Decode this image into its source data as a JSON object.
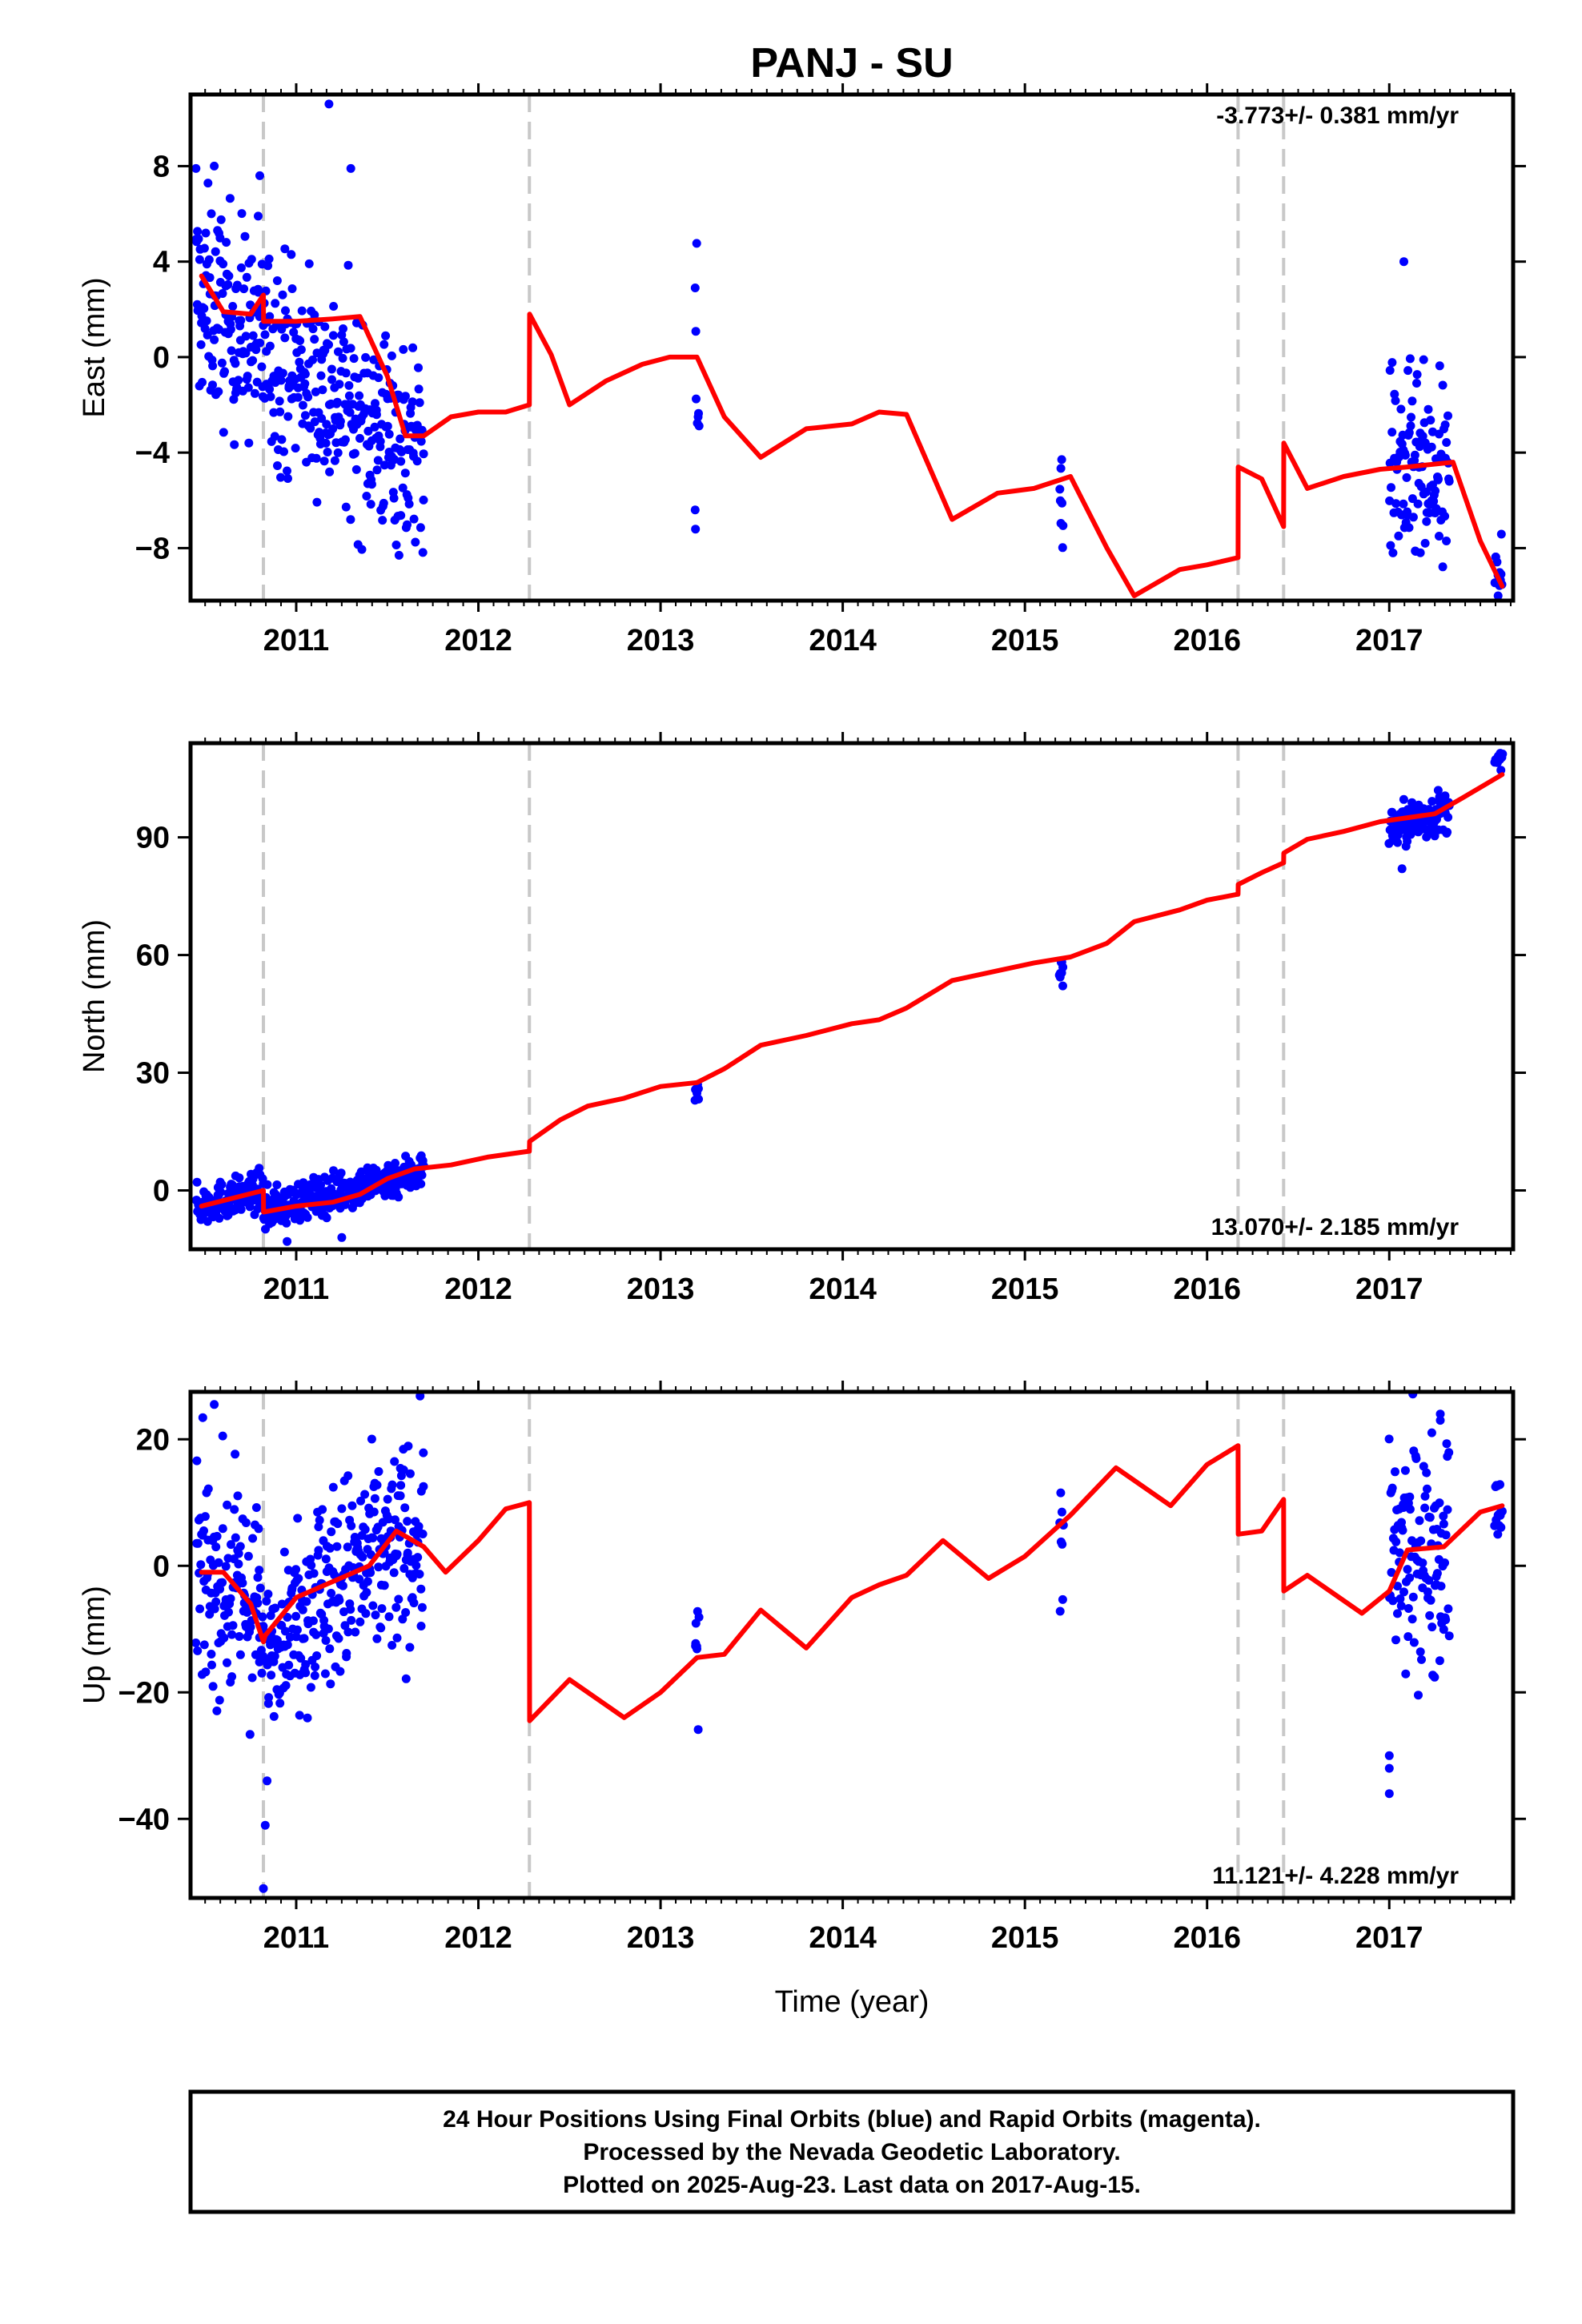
{
  "title": "PANJ - SU",
  "xlabel": "Time (year)",
  "footer": {
    "line1": "24 Hour Positions Using Final Orbits (blue) and Rapid Orbits (magenta).",
    "line2": "Processed by the Nevada Geodetic Laboratory.",
    "line3": "Plotted on 2025-Aug-23. Last data on 2017-Aug-15."
  },
  "colors": {
    "final_points": "#0000ff",
    "model": "#ff0000",
    "step_lines": "#c8c8c8"
  },
  "chart_data": [
    {
      "type": "scatter",
      "component": "east",
      "ylabel": "East (mm)",
      "rate_text": "-3.773+/- 0.381 mm/yr",
      "rate_position": "top-right",
      "xlim": [
        2010.42,
        2017.68
      ],
      "ylim": [
        -10.2,
        11
      ],
      "xticks": [
        2011,
        2012,
        2013,
        2014,
        2015,
        2016,
        2017
      ],
      "yticks": [
        -8,
        -4,
        0,
        4,
        8
      ],
      "steps": [
        2010.82,
        2012.28,
        2016.17,
        2016.42
      ],
      "series": [
        {
          "kind": "points",
          "segments": [
            {
              "x": [
                2010.45,
                2011.7
              ],
              "trend": [
                2.6,
                -4.3
              ],
              "scatter": 2.2
            },
            {
              "x": [
                2013.19,
                2013.21
              ],
              "trend": [
                -1.5,
                -1.5
              ],
              "scatter": 2.8
            },
            {
              "x": [
                2015.19,
                2015.21
              ],
              "trend": [
                -5.8,
                -5.8
              ],
              "scatter": 1.5
            },
            {
              "x": [
                2017.0,
                2017.33
              ],
              "trend": [
                -4.6,
                -5.8
              ],
              "scatter": 2.1
            },
            {
              "x": [
                2017.58,
                2017.62
              ],
              "trend": [
                -8.4,
                -8.8
              ],
              "scatter": 1.0
            }
          ],
          "outliers": [
            [
              2010.45,
              7.9
            ],
            [
              2010.55,
              8.0
            ],
            [
              2010.8,
              7.6
            ],
            [
              2011.18,
              10.6
            ],
            [
              2011.3,
              7.9
            ],
            [
              2017.08,
              4.0
            ],
            [
              2013.19,
              2.9
            ],
            [
              2013.19,
              -6.4
            ]
          ]
        },
        {
          "kind": "model",
          "x": [
            2010.48,
            2010.6,
            2010.75,
            2010.82,
            2010.821,
            2011.0,
            2011.2,
            2011.35,
            2011.5,
            2011.6,
            2011.7,
            2011.85,
            2012.0,
            2012.15,
            2012.28,
            2012.281,
            2012.4,
            2012.5,
            2012.7,
            2012.9,
            2013.05,
            2013.2,
            2013.35,
            2013.55,
            2013.8,
            2014.05,
            2014.2,
            2014.35,
            2014.6,
            2014.85,
            2015.05,
            2015.25,
            2015.45,
            2015.6,
            2015.85,
            2016.0,
            2016.17,
            2016.171,
            2016.3,
            2016.42,
            2016.421,
            2016.55,
            2016.75,
            2016.95,
            2017.1,
            2017.35,
            2017.5,
            2017.62
          ],
          "y": [
            3.4,
            1.9,
            1.8,
            2.6,
            1.5,
            1.5,
            1.6,
            1.7,
            -0.8,
            -3.3,
            -3.3,
            -2.5,
            -2.3,
            -2.3,
            -2.0,
            1.8,
            0.1,
            -2.0,
            -1.0,
            -0.3,
            0.0,
            0.0,
            -2.5,
            -4.2,
            -3.0,
            -2.8,
            -2.3,
            -2.4,
            -6.8,
            -5.7,
            -5.5,
            -5.0,
            -8.0,
            -10.0,
            -8.9,
            -8.7,
            -8.4,
            -4.6,
            -5.1,
            -7.1,
            -3.6,
            -5.5,
            -5.0,
            -4.7,
            -4.6,
            -4.4,
            -7.7,
            -9.6
          ]
        }
      ]
    },
    {
      "type": "scatter",
      "component": "north",
      "ylabel": "North (mm)",
      "rate_text": "13.070+/- 2.185 mm/yr",
      "rate_position": "bottom-right",
      "xlim": [
        2010.42,
        2017.68
      ],
      "ylim": [
        -15,
        114
      ],
      "xticks": [
        2011,
        2012,
        2013,
        2014,
        2015,
        2016,
        2017
      ],
      "yticks": [
        0,
        30,
        60,
        90
      ],
      "steps": [
        2010.82,
        2012.28,
        2016.17,
        2016.42
      ],
      "series": [
        {
          "kind": "points",
          "segments": [
            {
              "x": [
                2010.45,
                2010.82
              ],
              "trend": [
                -4.0,
                0.0
              ],
              "scatter": 2.4
            },
            {
              "x": [
                2010.82,
                2011.7
              ],
              "trend": [
                -5.0,
                5.0
              ],
              "scatter": 2.5
            },
            {
              "x": [
                2013.19,
                2013.21
              ],
              "trend": [
                25.5,
                25.5
              ],
              "scatter": 1.6
            },
            {
              "x": [
                2015.19,
                2015.21
              ],
              "trend": [
                55.5,
                55.5
              ],
              "scatter": 1.6
            },
            {
              "x": [
                2017.0,
                2017.33
              ],
              "trend": [
                92.0,
                97.0
              ],
              "scatter": 2.8
            },
            {
              "x": [
                2017.58,
                2017.62
              ],
              "trend": [
                108.5,
                110.0
              ],
              "scatter": 1.0
            }
          ],
          "outliers": [
            [
              2010.95,
              -13.0
            ],
            [
              2011.25,
              -12.0
            ],
            [
              2017.07,
              82.0
            ]
          ]
        },
        {
          "kind": "model",
          "x": [
            2010.48,
            2010.65,
            2010.82,
            2010.821,
            2011.0,
            2011.2,
            2011.35,
            2011.5,
            2011.65,
            2011.85,
            2012.05,
            2012.28,
            2012.281,
            2012.45,
            2012.6,
            2012.8,
            2013.0,
            2013.2,
            2013.35,
            2013.55,
            2013.8,
            2014.05,
            2014.2,
            2014.35,
            2014.6,
            2014.85,
            2015.05,
            2015.25,
            2015.45,
            2015.6,
            2015.85,
            2016.0,
            2016.17,
            2016.171,
            2016.3,
            2016.42,
            2016.421,
            2016.55,
            2016.75,
            2016.95,
            2017.1,
            2017.25,
            2017.4,
            2017.62
          ],
          "y": [
            -4.0,
            -2.0,
            0.0,
            -5.5,
            -4.0,
            -3.0,
            -1.0,
            3.0,
            5.5,
            6.5,
            8.5,
            10.0,
            12.5,
            18.0,
            21.5,
            23.5,
            26.5,
            27.5,
            31.0,
            37.0,
            39.5,
            42.5,
            43.5,
            46.5,
            53.5,
            56.0,
            58.0,
            59.5,
            63.0,
            68.5,
            71.5,
            74.0,
            75.5,
            78.0,
            81.0,
            83.5,
            86.0,
            89.5,
            91.5,
            94.0,
            95.0,
            96.0,
            100.0,
            106.0
          ]
        }
      ]
    },
    {
      "type": "scatter",
      "component": "up",
      "ylabel": "Up (mm)",
      "rate_text": "11.121+/- 4.228 mm/yr",
      "rate_position": "bottom-right",
      "xlim": [
        2010.42,
        2017.68
      ],
      "ylim": [
        -52.5,
        27.5
      ],
      "xticks": [
        2011,
        2012,
        2013,
        2014,
        2015,
        2016,
        2017
      ],
      "yticks": [
        -40,
        -20,
        0,
        20
      ],
      "steps": [
        2010.82,
        2012.28,
        2016.17,
        2016.42
      ],
      "series": [
        {
          "kind": "points",
          "segments": [
            {
              "x": [
                2010.45,
                2010.8
              ],
              "trend": [
                -1.0,
                -6.0
              ],
              "scatter": 8.5
            },
            {
              "x": [
                2010.8,
                2011.0
              ],
              "trend": [
                -14.0,
                -8.0
              ],
              "scatter": 5.0
            },
            {
              "x": [
                2011.0,
                2011.7
              ],
              "trend": [
                -6.0,
                4.5
              ],
              "scatter": 8.0
            },
            {
              "x": [
                2013.19,
                2013.21
              ],
              "trend": [
                -10.5,
                -10.5
              ],
              "scatter": 8.0
            },
            {
              "x": [
                2015.19,
                2015.21
              ],
              "trend": [
                1.0,
                1.0
              ],
              "scatter": 7.5
            },
            {
              "x": [
                2017.0,
                2017.33
              ],
              "trend": [
                0.0,
                4.0
              ],
              "scatter": 9.0
            },
            {
              "x": [
                2017.58,
                2017.62
              ],
              "trend": [
                8.0,
                9.0
              ],
              "scatter": 2.8
            }
          ],
          "outliers": [
            [
              2010.82,
              -51.0
            ],
            [
              2010.83,
              -41.0
            ],
            [
              2010.84,
              -34.0
            ],
            [
              2010.55,
              25.5
            ],
            [
              2017.0,
              -36.0
            ],
            [
              2017.0,
              -32.0
            ],
            [
              2017.0,
              -30.0
            ],
            [
              2017.28,
              24.0
            ],
            [
              2017.28,
              23.0
            ]
          ]
        },
        {
          "kind": "model",
          "x": [
            2010.48,
            2010.6,
            2010.75,
            2010.82,
            2010.83,
            2011.0,
            2011.2,
            2011.4,
            2011.55,
            2011.7,
            2011.82,
            2012.0,
            2012.15,
            2012.28,
            2012.281,
            2012.5,
            2012.8,
            2013.0,
            2013.2,
            2013.35,
            2013.55,
            2013.8,
            2014.05,
            2014.2,
            2014.35,
            2014.55,
            2014.8,
            2015.0,
            2015.25,
            2015.5,
            2015.8,
            2016.0,
            2016.17,
            2016.171,
            2016.3,
            2016.42,
            2016.421,
            2016.55,
            2016.85,
            2017.0,
            2017.1,
            2017.3,
            2017.5,
            2017.62
          ],
          "y": [
            -1.0,
            -1.0,
            -6.0,
            -12.0,
            -11.0,
            -5.0,
            -2.5,
            0.0,
            5.5,
            3.0,
            -1.0,
            4.0,
            9.0,
            10.0,
            -24.5,
            -18.0,
            -24.0,
            -20.0,
            -14.5,
            -14.0,
            -7.0,
            -13.0,
            -5.0,
            -3.0,
            -1.5,
            4.0,
            -2.0,
            1.5,
            8.0,
            15.5,
            9.5,
            16.0,
            19.0,
            5.0,
            5.5,
            10.5,
            -4.0,
            -1.5,
            -7.5,
            -4.0,
            2.5,
            3.0,
            8.5,
            9.5
          ]
        }
      ]
    }
  ]
}
